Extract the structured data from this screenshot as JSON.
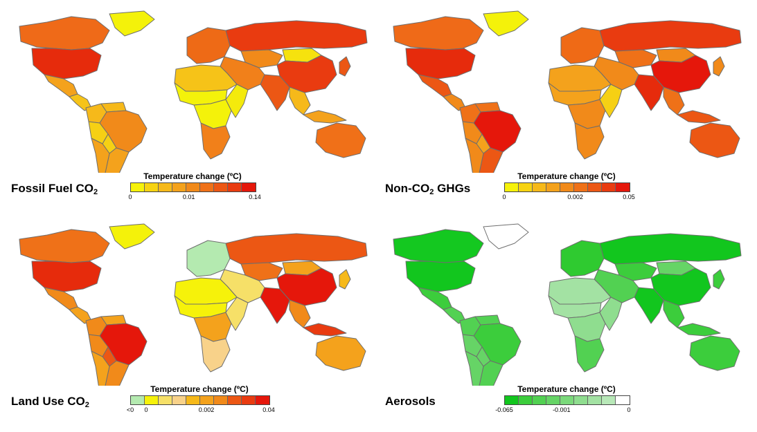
{
  "panels": [
    {
      "id": "fossil",
      "title_main": "Fossil Fuel CO",
      "title_sub": "2",
      "title_after": "",
      "legend_title": "Temperature change (ºC)",
      "legend_colors": [
        "#f6f20a",
        "#f7d312",
        "#f6b91a",
        "#f4a21c",
        "#f18a1a",
        "#ef7118",
        "#ec5714",
        "#e93b10",
        "#e5170b"
      ],
      "ticks": [
        {
          "label": "0",
          "pos": 0.0
        },
        {
          "label": "0.01",
          "pos": 0.47
        },
        {
          "label": "0.14",
          "pos": 1.0
        }
      ],
      "colors": {
        "canada": "#ef6a18",
        "greenland": "#f4f20a",
        "usa": "#e62b0c",
        "mexico": "#f4a21c",
        "central_am": "#f6c318",
        "colombia": "#f6b91a",
        "venezuela": "#f6b91a",
        "brazil": "#f18a1a",
        "peru": "#f6d014",
        "bolivia": "#f6d014",
        "argentina": "#f4a21c",
        "chile": "#f4a21c",
        "west_europe": "#ee6a16",
        "russia": "#e93b10",
        "kazakh": "#f18a1a",
        "mongolia": "#f6e20e",
        "china": "#e93b10",
        "india": "#ec5714",
        "se_asia": "#f6b91a",
        "mideast": "#f1801a",
        "north_africa": "#f6c318",
        "sahel": "#f4f20a",
        "central_africa": "#f4f20a",
        "east_africa": "#f4ea0c",
        "south_africa": "#f1801a",
        "australia": "#f07018",
        "indonesia": "#f4a21c",
        "japan": "#ec5714"
      }
    },
    {
      "id": "nonco2",
      "title_main": "Non-CO",
      "title_sub": "2",
      "title_after": " GHGs",
      "legend_title": "Temperature change (ºC)",
      "legend_colors": [
        "#f6f20a",
        "#f7d312",
        "#f6b91a",
        "#f4a21c",
        "#f18a1a",
        "#ef7118",
        "#ec5714",
        "#e93b10",
        "#e5170b"
      ],
      "ticks": [
        {
          "label": "0",
          "pos": 0.0
        },
        {
          "label": "0.002",
          "pos": 0.57
        },
        {
          "label": "0.05",
          "pos": 1.0
        }
      ],
      "colors": {
        "canada": "#ef6a18",
        "greenland": "#f4f20a",
        "usa": "#e62b0c",
        "mexico": "#ec5714",
        "central_am": "#f18a1a",
        "colombia": "#ef7118",
        "venezuela": "#ef7118",
        "brazil": "#e5170b",
        "peru": "#f18a1a",
        "bolivia": "#f4a21c",
        "argentina": "#ec5714",
        "chile": "#f18a1a",
        "west_europe": "#ef6a16",
        "russia": "#e93b10",
        "kazakh": "#ef7118",
        "mongolia": "#f18a1a",
        "china": "#e5170b",
        "india": "#e62b0c",
        "se_asia": "#ef7118",
        "mideast": "#f18a1a",
        "north_africa": "#f4a21c",
        "sahel": "#f4a21c",
        "central_africa": "#f18a1a",
        "east_africa": "#f6d014",
        "south_africa": "#f18a1a",
        "australia": "#ec5714",
        "indonesia": "#ec5714",
        "japan": "#f18a1a"
      }
    },
    {
      "id": "landuse",
      "title_main": "Land Use CO",
      "title_sub": "2",
      "title_after": "",
      "legend_title": "Temperature change (ºC)",
      "legend_colors": [
        "#b4eab0",
        "#f6f20a",
        "#f6e068",
        "#f8d28a",
        "#f6b91a",
        "#f4a21c",
        "#f18a1a",
        "#ec5714",
        "#e93b10",
        "#e5170b"
      ],
      "ticks": [
        {
          "label": "<0",
          "pos": 0.0
        },
        {
          "label": "0",
          "pos": 0.115
        },
        {
          "label": "0.002",
          "pos": 0.55
        },
        {
          "label": "0.04",
          "pos": 1.0
        }
      ],
      "colors": {
        "canada": "#ef7118",
        "greenland": "#f4f20a",
        "usa": "#e62b0c",
        "mexico": "#f18a1a",
        "central_am": "#f4a21c",
        "colombia": "#f18a1a",
        "venezuela": "#f4a21c",
        "brazil": "#e5170b",
        "peru": "#f18a1a",
        "bolivia": "#ec5714",
        "argentina": "#f18a1a",
        "chile": "#f4a21c",
        "west_europe": "#b4eab0",
        "russia": "#ec5714",
        "kazakh": "#ef7118",
        "mongolia": "#f4a21c",
        "china": "#e5170b",
        "india": "#e5170b",
        "se_asia": "#f18a1a",
        "mideast": "#f6e068",
        "north_africa": "#f6f20a",
        "sahel": "#f6f20a",
        "central_africa": "#f4a21c",
        "east_africa": "#f6e068",
        "south_africa": "#f8d28a",
        "australia": "#f4a21c",
        "indonesia": "#e93b10",
        "japan": "#f6b91a"
      }
    },
    {
      "id": "aerosols",
      "title_main": "Aerosols",
      "title_sub": "",
      "title_after": "",
      "legend_title": "Temperature change (ºC)",
      "legend_colors": [
        "#12c61e",
        "#3ccd3c",
        "#52d152",
        "#66d466",
        "#7bd97b",
        "#8fdd8f",
        "#a3e2a3",
        "#b8e8b8",
        "#ffffff"
      ],
      "ticks": [
        {
          "label": "-0.065",
          "pos": 0.0
        },
        {
          "label": "-0.001",
          "pos": 0.46
        },
        {
          "label": "0",
          "pos": 1.0
        }
      ],
      "colors": {
        "canada": "#14c820",
        "greenland": "#ffffff",
        "usa": "#12c61e",
        "mexico": "#3ccd3c",
        "central_am": "#52d152",
        "colombia": "#52d152",
        "venezuela": "#52d152",
        "brazil": "#3ccd3c",
        "peru": "#66d466",
        "bolivia": "#66d466",
        "argentina": "#52d152",
        "chile": "#66d466",
        "west_europe": "#2fca30",
        "russia": "#12c61e",
        "kazakh": "#3ccd3c",
        "mongolia": "#66d466",
        "china": "#12c61e",
        "india": "#12c61e",
        "se_asia": "#3ccd3c",
        "mideast": "#52d152",
        "north_africa": "#a3e2a3",
        "sahel": "#a3e2a3",
        "central_africa": "#8fdd8f",
        "east_africa": "#8fdd8f",
        "south_africa": "#52d152",
        "australia": "#3ccd3c",
        "indonesia": "#3ccd3c",
        "japan": "#3ccd3c"
      }
    }
  ]
}
